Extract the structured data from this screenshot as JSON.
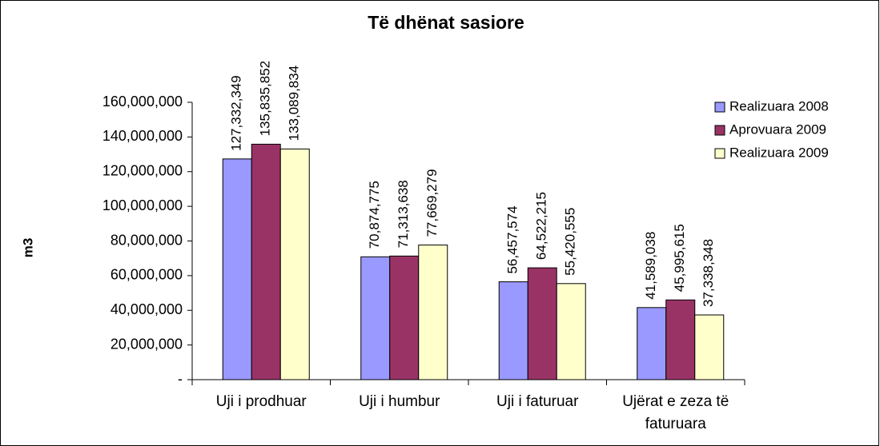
{
  "chart_data": {
    "type": "bar",
    "title": "Të dhënat sasiore",
    "y_label": "m3",
    "categories": [
      "Uji i prodhuar",
      "Uji i humbur",
      "Uji i faturuar",
      "Ujërat e zeza të faturuara"
    ],
    "series": [
      {
        "name": "Realizuara 2008",
        "color": "#9999ff",
        "values": [
          127332349,
          70874775,
          56457574,
          41589038
        ],
        "value_labels": [
          "127,332,349",
          "70,874,775",
          "56,457,574",
          "41,589,038"
        ]
      },
      {
        "name": "Aprovuara 2009",
        "color": "#993366",
        "values": [
          135835852,
          71313638,
          64522215,
          45995615
        ],
        "value_labels": [
          "135,835,852",
          "71,313,638",
          "64,522,215",
          "45,995,615"
        ]
      },
      {
        "name": "Realizuara 2009",
        "color": "#ffffcc",
        "values": [
          133089834,
          77669279,
          55420555,
          37338348
        ],
        "value_labels": [
          "133,089,834",
          "77,669,279",
          "55,420,555",
          "37,338,348"
        ]
      }
    ],
    "ylim": [
      0,
      160000000
    ],
    "yticks": [
      {
        "value": 0,
        "label": "-"
      },
      {
        "value": 20000000,
        "label": "20,000,000"
      },
      {
        "value": 40000000,
        "label": "40,000,000"
      },
      {
        "value": 60000000,
        "label": "60,000,000"
      },
      {
        "value": 80000000,
        "label": "80,000,000"
      },
      {
        "value": 100000000,
        "label": "100,000,000"
      },
      {
        "value": 120000000,
        "label": "120,000,000"
      },
      {
        "value": 140000000,
        "label": "140,000,000"
      },
      {
        "value": 160000000,
        "label": "160,000,000"
      }
    ],
    "grid": false,
    "legend": "right"
  }
}
